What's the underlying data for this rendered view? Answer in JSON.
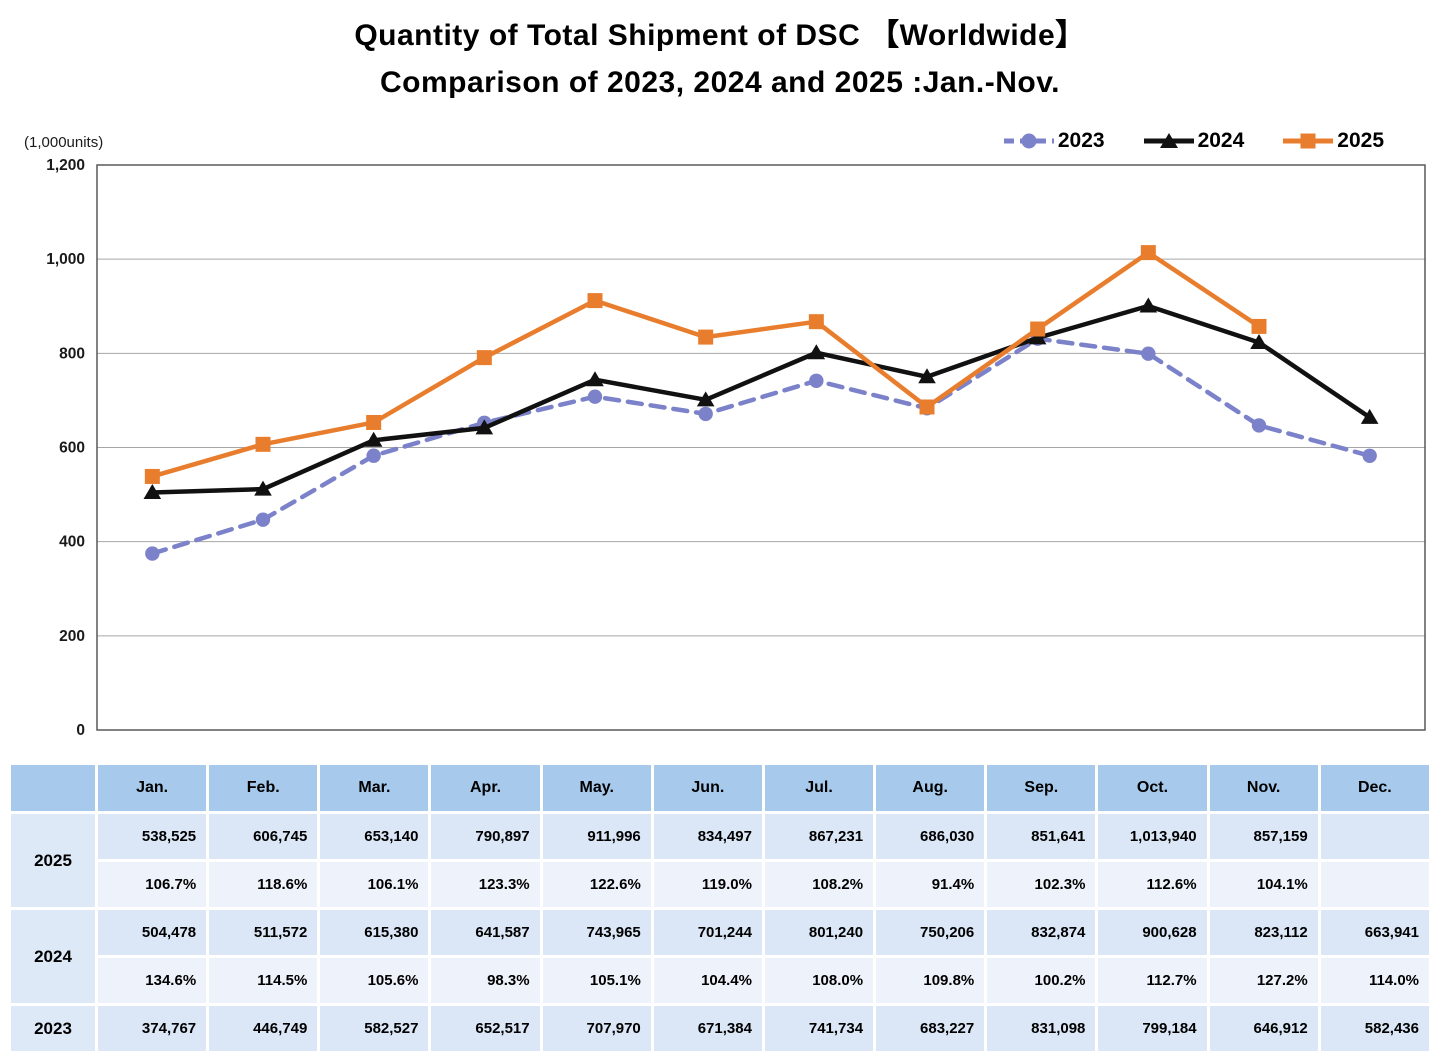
{
  "title": {
    "line1": "Quantity of Total Shipment of DSC 【Worldwide】",
    "line2": "Comparison of 2023, 2024 and 2025 :Jan.-Nov."
  },
  "colors": {
    "series_2023": "#7B82C9",
    "series_2024": "#111111",
    "series_2025": "#E87E2D",
    "gridline": "#A6A6A6",
    "plot_frame": "#595959",
    "table_header_bg": "#A6C9EC",
    "table_value_bg": "#DBE7F6",
    "table_percent_bg": "#EEF3FB",
    "table_year_bg": "#DEE9F7"
  },
  "chart_data": {
    "type": "line",
    "title": "Quantity of Total Shipment of DSC 【Worldwide】 Comparison of 2023, 2024 and 2025 :Jan.-Nov.",
    "unit_label": "(1,000units)",
    "categories": [
      "Jan.",
      "Feb.",
      "Mar.",
      "Apr.",
      "May.",
      "Jun.",
      "Jul.",
      "Aug.",
      "Sep.",
      "Oct.",
      "Nov.",
      "Dec."
    ],
    "ylim": [
      0,
      1200
    ],
    "ytick_step": 200,
    "ytick_labels": [
      "0",
      "200",
      "400",
      "600",
      "800",
      "1,000",
      "1,200"
    ],
    "grid": "horizontal",
    "legend_position": "top-right",
    "value_scale_note": "values are shipment units; plotted in 1,000units",
    "series": [
      {
        "name": "2023",
        "color": "#7B82C9",
        "line_style": "dashed",
        "marker": "circle",
        "values_units": [
          374767,
          446749,
          582527,
          652517,
          707970,
          671384,
          741734,
          683227,
          831098,
          799184,
          646912,
          582436
        ]
      },
      {
        "name": "2024",
        "color": "#111111",
        "line_style": "solid",
        "marker": "triangle",
        "values_units": [
          504478,
          511572,
          615380,
          641587,
          743965,
          701244,
          801240,
          750206,
          832874,
          900628,
          823112,
          663941
        ]
      },
      {
        "name": "2025",
        "color": "#E87E2D",
        "line_style": "solid",
        "marker": "square",
        "values_units": [
          538525,
          606745,
          653140,
          790897,
          911996,
          834497,
          867231,
          686030,
          851641,
          1013940,
          857159,
          null
        ]
      }
    ]
  },
  "table": {
    "columns": [
      "Jan.",
      "Feb.",
      "Mar.",
      "Apr.",
      "May.",
      "Jun.",
      "Jul.",
      "Aug.",
      "Sep.",
      "Oct.",
      "Nov.",
      "Dec."
    ],
    "groups": [
      {
        "year": "2025",
        "shipments": [
          "538,525",
          "606,745",
          "653,140",
          "790,897",
          "911,996",
          "834,497",
          "867,231",
          "686,030",
          "851,641",
          "1,013,940",
          "857,159",
          ""
        ],
        "yoy": [
          "106.7%",
          "118.6%",
          "106.1%",
          "123.3%",
          "122.6%",
          "119.0%",
          "108.2%",
          "91.4%",
          "102.3%",
          "112.6%",
          "104.1%",
          ""
        ]
      },
      {
        "year": "2024",
        "shipments": [
          "504,478",
          "511,572",
          "615,380",
          "641,587",
          "743,965",
          "701,244",
          "801,240",
          "750,206",
          "832,874",
          "900,628",
          "823,112",
          "663,941"
        ],
        "yoy": [
          "134.6%",
          "114.5%",
          "105.6%",
          "98.3%",
          "105.1%",
          "104.4%",
          "108.0%",
          "109.8%",
          "100.2%",
          "112.7%",
          "127.2%",
          "114.0%"
        ]
      },
      {
        "year": "2023",
        "shipments": [
          "374,767",
          "446,749",
          "582,527",
          "652,517",
          "707,970",
          "671,384",
          "741,734",
          "683,227",
          "831,098",
          "799,184",
          "646,912",
          "582,436"
        ],
        "yoy": null
      }
    ]
  }
}
